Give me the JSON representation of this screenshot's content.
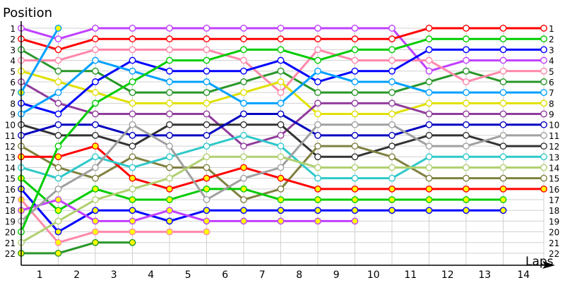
{
  "chart_data": {
    "type": "line",
    "title": "",
    "ylabel": "Position",
    "xlabel": "Laps",
    "x_ticks": [
      "1",
      "2",
      "3",
      "4",
      "5",
      "6",
      "7",
      "8",
      "9",
      "10",
      "11",
      "12",
      "13",
      "14"
    ],
    "y_ticks": [
      1,
      2,
      3,
      4,
      5,
      6,
      7,
      8,
      9,
      10,
      11,
      12,
      13,
      14,
      15,
      16,
      17,
      18,
      19,
      20,
      21,
      22
    ],
    "ylim": [
      1,
      22
    ],
    "y_inverted": true,
    "grid": true,
    "lapped_marker_color": "#ffff00",
    "x": [
      0,
      1,
      2,
      3,
      4,
      5,
      6,
      7,
      8,
      9,
      10,
      11,
      12,
      13,
      14
    ],
    "series": [
      {
        "color": "#c040ff",
        "values": [
          1,
          2,
          1,
          1,
          1,
          1,
          1,
          1,
          1,
          1,
          1,
          5,
          4,
          4,
          4
        ]
      },
      {
        "color": "#ff0000",
        "values": [
          2,
          3,
          2,
          2,
          2,
          2,
          2,
          2,
          2,
          2,
          2,
          1,
          1,
          1,
          1
        ]
      },
      {
        "color": "#289628",
        "values": [
          3,
          5,
          5,
          7,
          7,
          7,
          6,
          5,
          7,
          7,
          7,
          6,
          5,
          6,
          6
        ]
      },
      {
        "color": "#ff88aa",
        "values": [
          4,
          4,
          3,
          3,
          3,
          3,
          4,
          7,
          3,
          4,
          4,
          4,
          6,
          5,
          5
        ]
      },
      {
        "color": "#e0e000",
        "values": [
          5,
          6,
          7,
          8,
          8,
          8,
          7,
          6,
          9,
          9,
          9,
          8,
          8,
          8,
          8
        ]
      },
      {
        "color": "#903c9c",
        "values": [
          6,
          8,
          9,
          9,
          9,
          9,
          12,
          11,
          8,
          8,
          8,
          9,
          9,
          9,
          9
        ]
      },
      {
        "color": "#00a0ff",
        "lapped": true,
        "values": [
          7,
          1,
          null,
          null,
          null,
          null,
          null,
          null,
          null,
          null,
          null,
          null,
          null,
          null,
          null
        ]
      },
      {
        "color": "#0000ff",
        "values": [
          8,
          9,
          6,
          4,
          5,
          5,
          5,
          4,
          6,
          5,
          5,
          3,
          3,
          3,
          3
        ]
      },
      {
        "color": "#00a0ff",
        "values": [
          9,
          7,
          4,
          5,
          6,
          6,
          8,
          8,
          5,
          6,
          6,
          7,
          7,
          7,
          7
        ]
      },
      {
        "color": "#333333",
        "values": [
          10,
          11,
          11,
          12,
          10,
          10,
          10,
          10,
          13,
          13,
          12,
          11,
          11,
          12,
          12
        ]
      },
      {
        "color": "#0000c0",
        "values": [
          11,
          10,
          10,
          11,
          11,
          11,
          9,
          9,
          11,
          11,
          11,
          10,
          10,
          10,
          10
        ]
      },
      {
        "color": "#808040",
        "values": [
          12,
          14,
          15,
          13,
          14,
          14,
          17,
          16,
          12,
          12,
          13,
          15,
          15,
          15,
          15
        ]
      },
      {
        "color": "#ff0000",
        "lapped": true,
        "values": [
          13,
          13,
          12,
          15,
          16,
          15,
          14,
          15,
          16,
          16,
          16,
          16,
          16,
          16,
          16
        ]
      },
      {
        "color": "#30c8c8",
        "values": [
          14,
          15,
          13,
          14,
          13,
          12,
          11,
          12,
          15,
          15,
          15,
          13,
          13,
          13,
          13
        ]
      },
      {
        "color": "#00cc00",
        "lapped": true,
        "values": [
          15,
          18,
          16,
          17,
          17,
          16,
          16,
          17,
          17,
          17,
          17,
          17,
          17,
          17,
          null
        ]
      },
      {
        "color": "#0000ff",
        "lapped": true,
        "values": [
          16,
          20,
          18,
          18,
          19,
          18,
          18,
          18,
          18,
          18,
          18,
          18,
          18,
          18,
          null
        ]
      },
      {
        "color": "#ff88aa",
        "lapped": true,
        "values": [
          17,
          21,
          20,
          20,
          20,
          20,
          null,
          null,
          null,
          null,
          null,
          null,
          null,
          null,
          null
        ]
      },
      {
        "color": "#c040ff",
        "lapped": true,
        "values": [
          18,
          17,
          19,
          19,
          18,
          19,
          19,
          19,
          19,
          19,
          null,
          null,
          null,
          null,
          null
        ]
      },
      {
        "color": "#a0a0a0",
        "values": [
          19,
          16,
          14,
          10,
          12,
          17,
          15,
          14,
          10,
          10,
          10,
          12,
          12,
          11,
          11
        ]
      },
      {
        "color": "#00cc00",
        "values": [
          20,
          12,
          8,
          6,
          4,
          4,
          3,
          3,
          4,
          3,
          3,
          2,
          2,
          2,
          2
        ]
      },
      {
        "color": "#b0d070",
        "values": [
          21,
          19,
          17,
          16,
          15,
          13,
          13,
          13,
          14,
          14,
          14,
          14,
          14,
          14,
          14
        ]
      },
      {
        "color": "#289628",
        "lapped": true,
        "values": [
          22,
          22,
          21,
          21,
          null,
          null,
          null,
          null,
          null,
          null,
          null,
          null,
          null,
          null,
          null
        ]
      }
    ]
  }
}
